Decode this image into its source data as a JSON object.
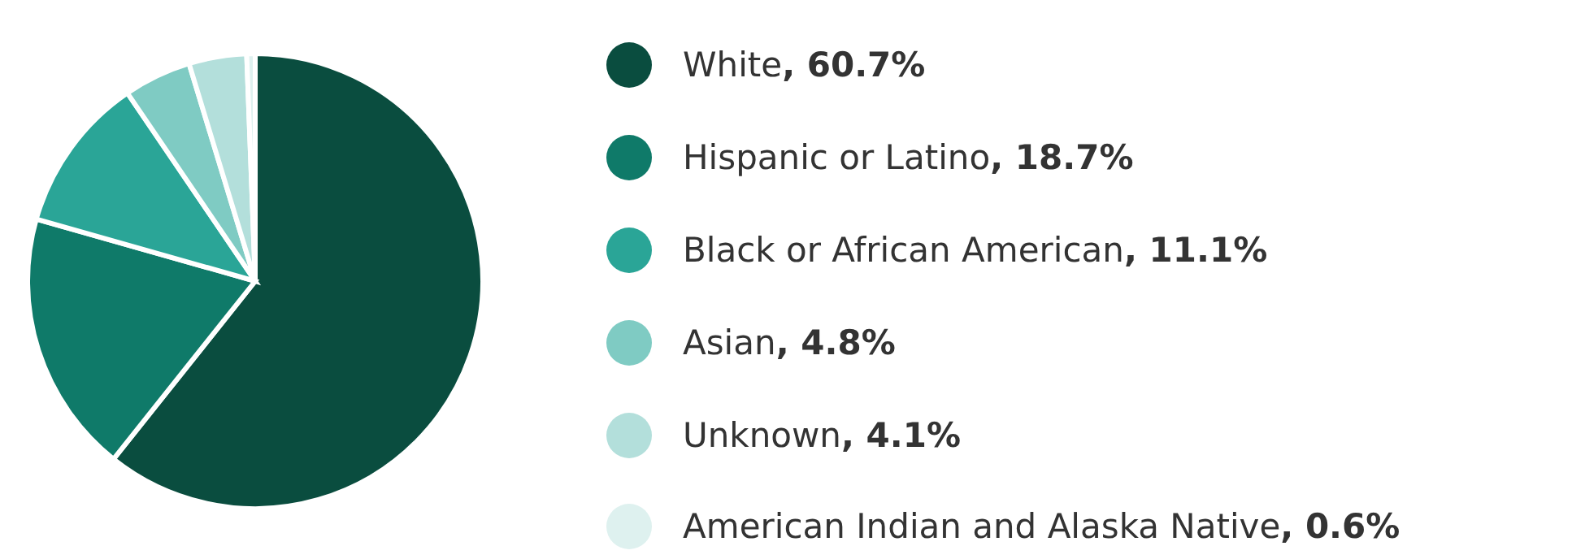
{
  "chart_data": {
    "type": "pie",
    "categories": [
      "White",
      "Hispanic or Latino",
      "Black or African American",
      "Asian",
      "Unknown",
      "American Indian and Alaska Native"
    ],
    "value_labels": [
      ", 60.7%",
      ", 18.7%",
      ", 11.1%",
      ", 4.8%",
      ", 4.1%",
      ", 0.6%"
    ],
    "values": [
      60.7,
      18.7,
      11.1,
      4.8,
      4.1,
      0.6
    ],
    "colors": [
      "#0a4d3f",
      "#0f7a69",
      "#2aa597",
      "#7fcbc3",
      "#b3dfdb",
      "#def1ef"
    ],
    "legend": "right"
  }
}
